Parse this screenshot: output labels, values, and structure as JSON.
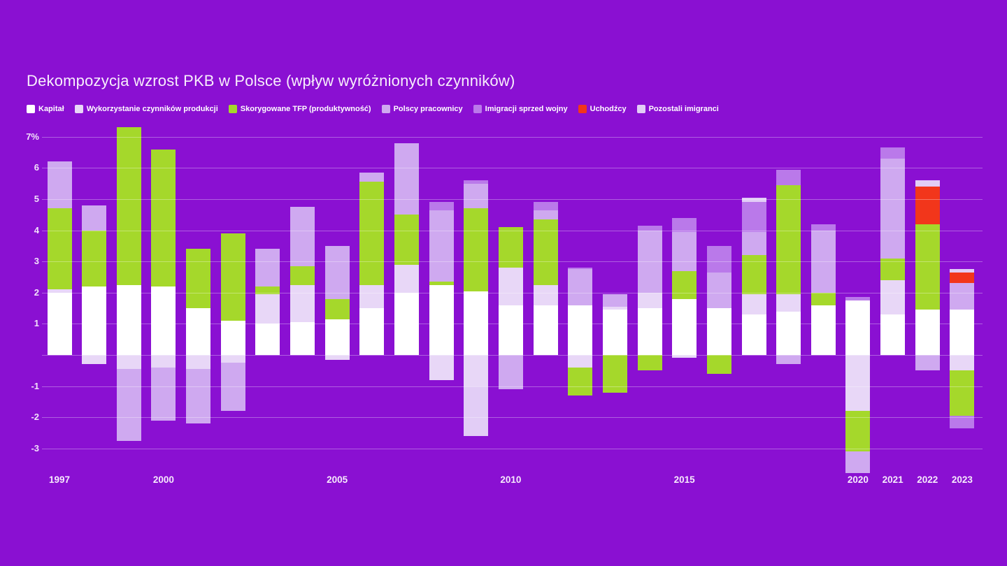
{
  "page": {
    "background_color": "#8a10d2",
    "title": "Dekompozycja wzrost PKB w Polsce (wpływ wyróżnionych czynników)",
    "title_color": "#f8eefc"
  },
  "chart_data": {
    "type": "bar",
    "stacked": true,
    "title": "Dekompozycja wzrost PKB w Polsce (wpływ wyróżnionych czynników)",
    "unit": "%",
    "ylim": [
      -4,
      7.4
    ],
    "grid": true,
    "legend_position": "top-left",
    "y_ticks": [
      {
        "value": 7,
        "label": "7%"
      },
      {
        "value": 6,
        "label": "6"
      },
      {
        "value": 5,
        "label": "5"
      },
      {
        "value": 4,
        "label": "4"
      },
      {
        "value": 3,
        "label": "3"
      },
      {
        "value": 2,
        "label": "2"
      },
      {
        "value": 1,
        "label": "1"
      },
      {
        "value": 0,
        "label": ""
      },
      {
        "value": -1,
        "label": "-1"
      },
      {
        "value": -2,
        "label": "-2"
      },
      {
        "value": -3,
        "label": "-3"
      }
    ],
    "x_axis_labeled_years": [
      1997,
      2000,
      2005,
      2010,
      2015,
      2020,
      2021,
      2022,
      2023
    ],
    "series": [
      {
        "name": "Kapitał",
        "color": "#ffffff"
      },
      {
        "name": "Wykorzystanie czynników produkcji",
        "color": "#e8d7f7"
      },
      {
        "name": "Skorygowane TFP (produktywność)",
        "color": "#a5d82b"
      },
      {
        "name": "Polscy pracownicy",
        "color": "#cfa9f0"
      },
      {
        "name": "Imigracji sprzed wojny",
        "color": "#ba79ea"
      },
      {
        "name": "Uchodźcy",
        "color": "#f2361b"
      },
      {
        "name": "Pozostali imigranci",
        "color": "#e2cdf6"
      }
    ],
    "years": [
      {
        "year": 1997,
        "segments": [
          {
            "series": "Kapitał",
            "value": 2.0
          },
          {
            "series": "Wykorzystanie czynników produkcji",
            "value": 0.1
          },
          {
            "series": "Skorygowane TFP (produktywność)",
            "value": 2.6
          },
          {
            "series": "Polscy pracownicy",
            "value": 1.5
          }
        ]
      },
      {
        "year": 1998,
        "segments": [
          {
            "series": "Kapitał",
            "value": 2.2
          },
          {
            "series": "Wykorzystanie czynników produkcji",
            "value": -0.3
          },
          {
            "series": "Skorygowane TFP (produktywność)",
            "value": 1.8
          },
          {
            "series": "Polscy pracownicy",
            "value": 0.8
          }
        ]
      },
      {
        "year": 1999,
        "segments": [
          {
            "series": "Kapitał",
            "value": 2.25
          },
          {
            "series": "Wykorzystanie czynników produkcji",
            "value": -0.45
          },
          {
            "series": "Skorygowane TFP (produktywność)",
            "value": 5.05
          },
          {
            "series": "Polscy pracownicy",
            "value": -2.3
          }
        ]
      },
      {
        "year": 2000,
        "segments": [
          {
            "series": "Kapitał",
            "value": 2.2
          },
          {
            "series": "Wykorzystanie czynników produkcji",
            "value": -0.4
          },
          {
            "series": "Skorygowane TFP (produktywność)",
            "value": 4.4
          },
          {
            "series": "Polscy pracownicy",
            "value": -1.7
          }
        ]
      },
      {
        "year": 2001,
        "segments": [
          {
            "series": "Kapitał",
            "value": 1.5
          },
          {
            "series": "Wykorzystanie czynników produkcji",
            "value": -0.45
          },
          {
            "series": "Skorygowane TFP (produktywność)",
            "value": 1.9
          },
          {
            "series": "Polscy pracownicy",
            "value": -1.75
          }
        ]
      },
      {
        "year": 2002,
        "segments": [
          {
            "series": "Kapitał",
            "value": 1.1
          },
          {
            "series": "Wykorzystanie czynników produkcji",
            "value": -0.25
          },
          {
            "series": "Skorygowane TFP (produktywność)",
            "value": 2.8
          },
          {
            "series": "Polscy pracownicy",
            "value": -1.55
          }
        ]
      },
      {
        "year": 2003,
        "segments": [
          {
            "series": "Kapitał",
            "value": 1.0
          },
          {
            "series": "Wykorzystanie czynników produkcji",
            "value": 0.95
          },
          {
            "series": "Skorygowane TFP (produktywność)",
            "value": 0.25
          },
          {
            "series": "Polscy pracownicy",
            "value": 1.2
          }
        ]
      },
      {
        "year": 2004,
        "segments": [
          {
            "series": "Kapitał",
            "value": 1.05
          },
          {
            "series": "Wykorzystanie czynników produkcji",
            "value": 1.2
          },
          {
            "series": "Skorygowane TFP (produktywność)",
            "value": 0.6
          },
          {
            "series": "Polscy pracownicy",
            "value": 1.9
          }
        ]
      },
      {
        "year": 2005,
        "segments": [
          {
            "series": "Kapitał",
            "value": 1.15
          },
          {
            "series": "Wykorzystanie czynników produkcji",
            "value": -0.15
          },
          {
            "series": "Skorygowane TFP (produktywność)",
            "value": 0.65
          },
          {
            "series": "Polscy pracownicy",
            "value": 1.7
          }
        ]
      },
      {
        "year": 2006,
        "segments": [
          {
            "series": "Kapitał",
            "value": 1.5
          },
          {
            "series": "Wykorzystanie czynników produkcji",
            "value": 0.75
          },
          {
            "series": "Skorygowane TFP (produktywność)",
            "value": 3.3
          },
          {
            "series": "Polscy pracownicy",
            "value": 0.3
          }
        ]
      },
      {
        "year": 2007,
        "segments": [
          {
            "series": "Kapitał",
            "value": 2.0
          },
          {
            "series": "Wykorzystanie czynników produkcji",
            "value": 0.9
          },
          {
            "series": "Skorygowane TFP (produktywność)",
            "value": 1.6
          },
          {
            "series": "Polscy pracownicy",
            "value": 2.3
          }
        ]
      },
      {
        "year": 2008,
        "segments": [
          {
            "series": "Kapitał",
            "value": 2.25
          },
          {
            "series": "Wykorzystanie czynników produkcji",
            "value": -0.8
          },
          {
            "series": "Skorygowane TFP (produktywność)",
            "value": 0.1
          },
          {
            "series": "Polscy pracownicy",
            "value": 2.3
          },
          {
            "series": "Imigracji sprzed wojny",
            "value": 0.25
          }
        ]
      },
      {
        "year": 2009,
        "segments": [
          {
            "series": "Kapitał",
            "value": 2.05
          },
          {
            "series": "Wykorzystanie czynników produkcji",
            "value": -1.0
          },
          {
            "series": "Skorygowane TFP (produktywność)",
            "value": 2.65
          },
          {
            "series": "Polscy pracownicy",
            "value": 0.8
          },
          {
            "series": "Imigracji sprzed wojny",
            "value": 0.1
          },
          {
            "series": "Pozostali imigranci",
            "value": -1.6
          }
        ]
      },
      {
        "year": 2010,
        "segments": [
          {
            "series": "Kapitał",
            "value": 1.6
          },
          {
            "series": "Wykorzystanie czynników produkcji",
            "value": 1.2
          },
          {
            "series": "Skorygowane TFP (produktywność)",
            "value": 1.3
          },
          {
            "series": "Polscy pracownicy",
            "value": -1.1
          }
        ]
      },
      {
        "year": 2011,
        "segments": [
          {
            "series": "Kapitał",
            "value": 1.6
          },
          {
            "series": "Wykorzystanie czynników produkcji",
            "value": 0.65
          },
          {
            "series": "Skorygowane TFP (produktywność)",
            "value": 2.1
          },
          {
            "series": "Polscy pracownicy",
            "value": 0.3
          },
          {
            "series": "Imigracji sprzed wojny",
            "value": 0.25
          }
        ]
      },
      {
        "year": 2012,
        "segments": [
          {
            "series": "Kapitał",
            "value": 1.6
          },
          {
            "series": "Wykorzystanie czynników produkcji",
            "value": -0.4
          },
          {
            "series": "Skorygowane TFP (produktywność)",
            "value": -0.9
          },
          {
            "series": "Polscy pracownicy",
            "value": 1.15
          },
          {
            "series": "Imigracji sprzed wojny",
            "value": 0.05
          }
        ]
      },
      {
        "year": 2013,
        "segments": [
          {
            "series": "Kapitał",
            "value": 1.45
          },
          {
            "series": "Wykorzystanie czynników produkcji",
            "value": 0.1
          },
          {
            "series": "Skorygowane TFP (produktywność)",
            "value": -1.2
          },
          {
            "series": "Polscy pracownicy",
            "value": 0.4
          }
        ]
      },
      {
        "year": 2014,
        "segments": [
          {
            "series": "Kapitał",
            "value": 1.5
          },
          {
            "series": "Wykorzystanie czynników produkcji",
            "value": 0.5
          },
          {
            "series": "Skorygowane TFP (produktywność)",
            "value": -0.5
          },
          {
            "series": "Polscy pracownicy",
            "value": 2.0
          },
          {
            "series": "Imigracji sprzed wojny",
            "value": 0.15
          }
        ]
      },
      {
        "year": 2015,
        "segments": [
          {
            "series": "Kapitał",
            "value": 1.8
          },
          {
            "series": "Wykorzystanie czynników produkcji",
            "value": -0.1
          },
          {
            "series": "Skorygowane TFP (produktywność)",
            "value": 0.9
          },
          {
            "series": "Polscy pracownicy",
            "value": 1.25
          },
          {
            "series": "Imigracji sprzed wojny",
            "value": 0.45
          }
        ]
      },
      {
        "year": 2016,
        "segments": [
          {
            "series": "Kapitał",
            "value": 1.5
          },
          {
            "series": "Skorygowane TFP (produktywność)",
            "value": -0.6
          },
          {
            "series": "Polscy pracownicy",
            "value": 1.15
          },
          {
            "series": "Imigracji sprzed wojny",
            "value": 0.85
          }
        ]
      },
      {
        "year": 2017,
        "segments": [
          {
            "series": "Kapitał",
            "value": 1.3
          },
          {
            "series": "Wykorzystanie czynników produkcji",
            "value": 0.65
          },
          {
            "series": "Skorygowane TFP (produktywność)",
            "value": 1.25
          },
          {
            "series": "Polscy pracownicy",
            "value": 0.75
          },
          {
            "series": "Imigracji sprzed wojny",
            "value": 0.95
          },
          {
            "series": "Pozostali imigranci",
            "value": 0.15
          }
        ]
      },
      {
        "year": 2018,
        "segments": [
          {
            "series": "Kapitał",
            "value": 1.4
          },
          {
            "series": "Wykorzystanie czynników produkcji",
            "value": 0.55
          },
          {
            "series": "Skorygowane TFP (produktywność)",
            "value": 3.5
          },
          {
            "series": "Polscy pracownicy",
            "value": -0.3
          },
          {
            "series": "Imigracji sprzed wojny",
            "value": 0.5
          }
        ]
      },
      {
        "year": 2019,
        "segments": [
          {
            "series": "Kapitał",
            "value": 1.6
          },
          {
            "series": "Skorygowane TFP (produktywność)",
            "value": 0.4
          },
          {
            "series": "Polscy pracownicy",
            "value": 2.0
          },
          {
            "series": "Imigracji sprzed wojny",
            "value": 0.2
          }
        ]
      },
      {
        "year": 2020,
        "segments": [
          {
            "series": "Kapitał",
            "value": 1.75
          },
          {
            "series": "Wykorzystanie czynników produkcji",
            "value": -1.8
          },
          {
            "series": "Skorygowane TFP (produktywność)",
            "value": -1.3
          },
          {
            "series": "Polscy pracownicy",
            "value": -0.7
          },
          {
            "series": "Imigracji sprzed wojny",
            "value": 0.1
          }
        ]
      },
      {
        "year": 2021,
        "segments": [
          {
            "series": "Kapitał",
            "value": 1.3
          },
          {
            "series": "Wykorzystanie czynników produkcji",
            "value": 1.1
          },
          {
            "series": "Skorygowane TFP (produktywność)",
            "value": 0.7
          },
          {
            "series": "Polscy pracownicy",
            "value": 3.2
          },
          {
            "series": "Imigracji sprzed wojny",
            "value": 0.35
          }
        ]
      },
      {
        "year": 2022,
        "segments": [
          {
            "series": "Kapitał",
            "value": 1.45
          },
          {
            "series": "Skorygowane TFP (produktywność)",
            "value": 2.75
          },
          {
            "series": "Polscy pracownicy",
            "value": -0.5
          },
          {
            "series": "Uchodźcy",
            "value": 1.2
          },
          {
            "series": "Pozostali imigranci",
            "value": 0.2
          }
        ]
      },
      {
        "year": 2023,
        "segments": [
          {
            "series": "Kapitał",
            "value": 1.45
          },
          {
            "series": "Wykorzystanie czynników produkcji",
            "value": -0.5
          },
          {
            "series": "Skorygowane TFP (produktywność)",
            "value": -1.45
          },
          {
            "series": "Polscy pracownicy",
            "value": 0.85
          },
          {
            "series": "Imigracji sprzed wojny",
            "value": -0.4
          },
          {
            "series": "Uchodźcy",
            "value": 0.35
          },
          {
            "series": "Pozostali imigranci",
            "value": 0.1
          }
        ]
      }
    ]
  }
}
